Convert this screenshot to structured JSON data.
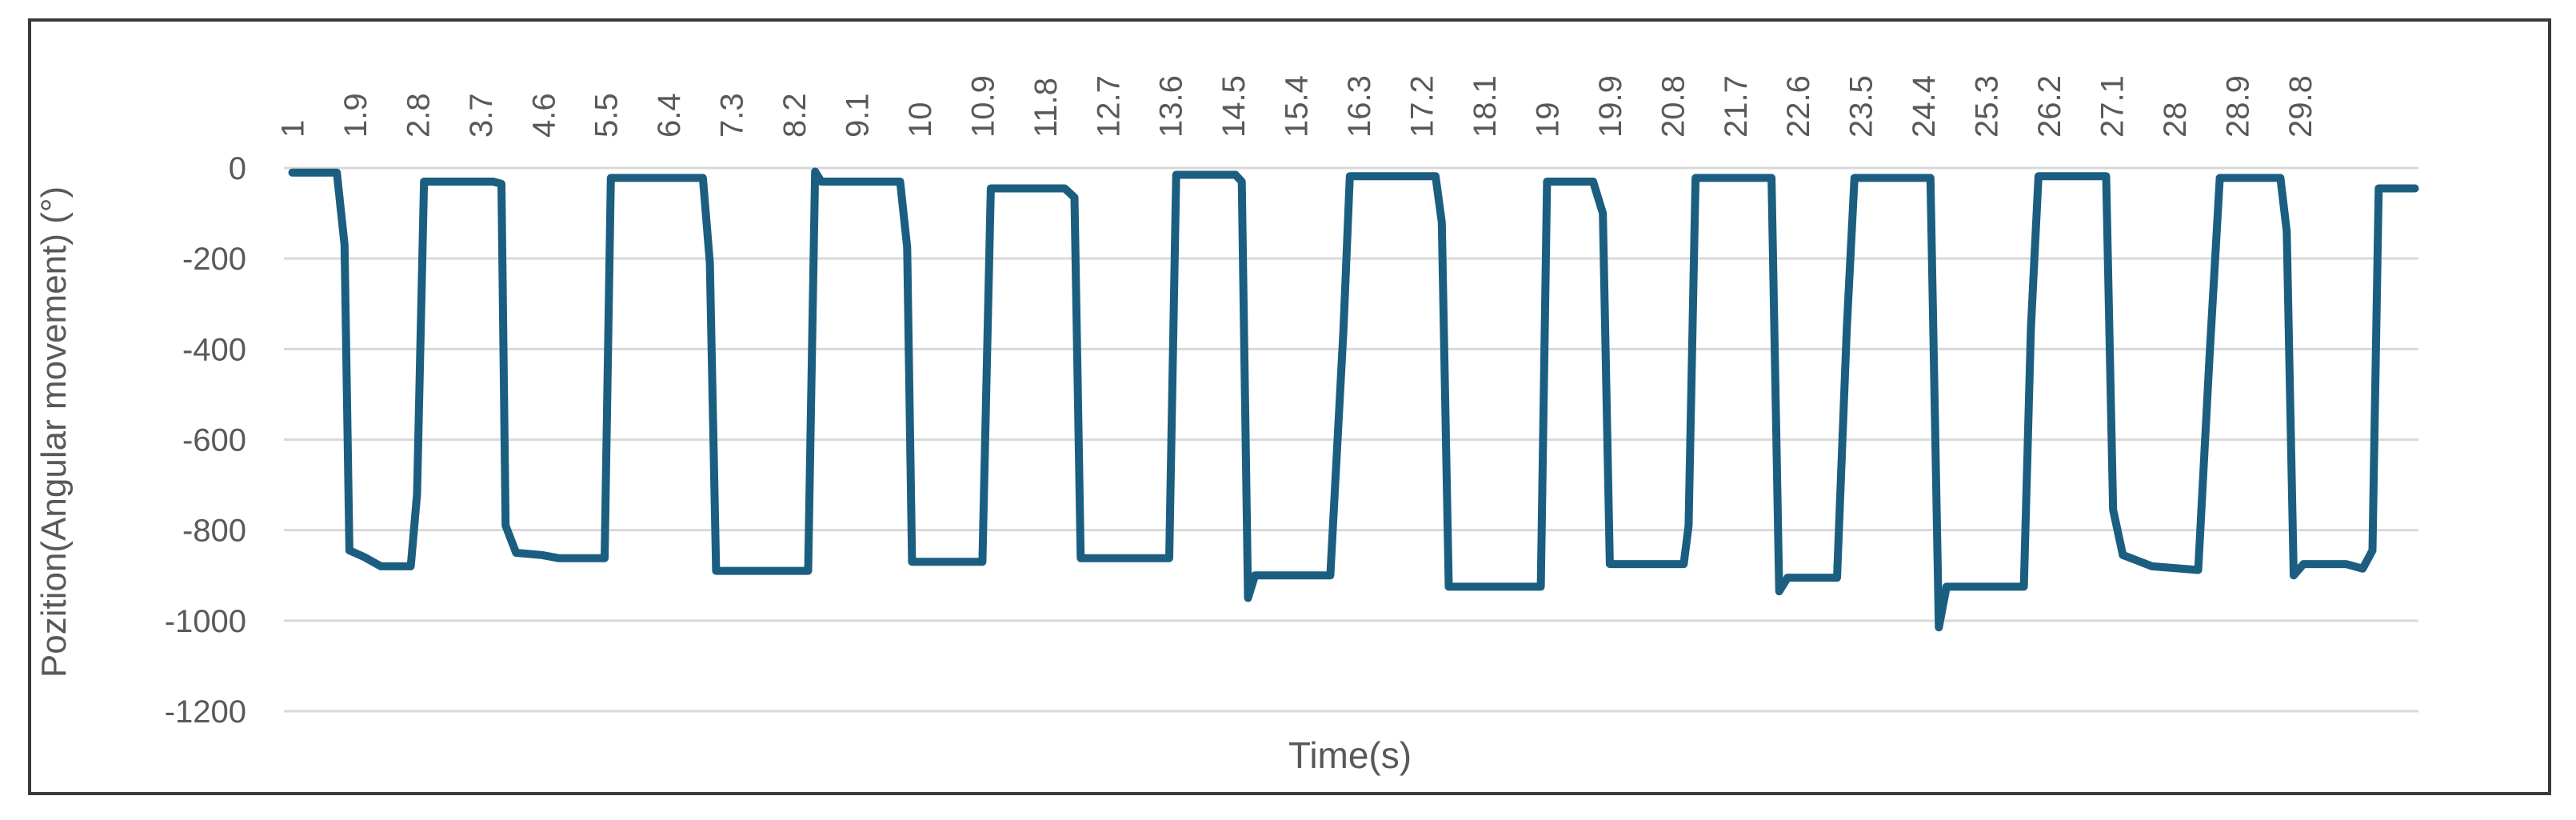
{
  "chart_data": {
    "type": "line",
    "y_label": "Pozition(Angular movement) (°)",
    "x_label": "Time(s)",
    "color": "#1b5e80",
    "grid": true,
    "xlim": [
      0.88,
      31.5
    ],
    "xticks": [
      1,
      1.9,
      2.8,
      3.7,
      4.6,
      5.5,
      6.4,
      7.3,
      8.2,
      9.1,
      10,
      10.9,
      11.8,
      12.7,
      13.6,
      14.5,
      15.4,
      16.3,
      17.2,
      18.1,
      19,
      19.9,
      20.8,
      21.7,
      22.6,
      23.5,
      24.4,
      25.3,
      26.2,
      27.1,
      28,
      28.9,
      29.8
    ],
    "ylim": [
      -1200,
      0
    ],
    "yticks": [
      0,
      -200,
      -400,
      -600,
      -800,
      -1000,
      -1200
    ],
    "x": [
      1,
      1.64,
      1.75,
      1.82,
      2.04,
      2.27,
      2.7,
      2.79,
      2.89,
      3.88,
      4.0,
      4.06,
      4.21,
      4.58,
      4.82,
      5.48,
      5.57,
      6.89,
      6.99,
      7.08,
      8.4,
      8.5,
      8.59,
      9.72,
      9.82,
      9.89,
      10.9,
      11.02,
      12.08,
      12.22,
      12.31,
      13.58,
      13.68,
      14.53,
      14.62,
      14.71,
      14.81,
      15.89,
      16.08,
      16.17,
      17.4,
      17.49,
      17.59,
      18.91,
      19.0,
      19.66,
      19.8,
      19.9,
      20.96,
      21.03,
      21.13,
      22.22,
      22.33,
      22.45,
      23.16,
      23.3,
      23.41,
      24.5,
      24.62,
      24.73,
      25.84,
      25.94,
      26.05,
      27.02,
      27.12,
      27.26,
      27.68,
      28.34,
      28.5,
      28.65,
      29.52,
      29.61,
      29.71,
      29.85,
      30.46,
      30.7,
      30.84,
      30.93,
      31.45
    ],
    "values": [
      -10,
      -10,
      -170,
      -845,
      -860,
      -880,
      -880,
      -720,
      -30,
      -30,
      -35,
      -790,
      -850,
      -855,
      -862,
      -862,
      -22,
      -22,
      -210,
      -890,
      -890,
      -8,
      -30,
      -30,
      -175,
      -870,
      -870,
      -45,
      -45,
      -65,
      -862,
      -862,
      -15,
      -15,
      -30,
      -950,
      -900,
      -900,
      -355,
      -18,
      -18,
      -120,
      -925,
      -925,
      -30,
      -30,
      -100,
      -875,
      -875,
      -790,
      -22,
      -22,
      -935,
      -905,
      -905,
      -355,
      -22,
      -22,
      -1015,
      -925,
      -925,
      -355,
      -18,
      -18,
      -755,
      -855,
      -880,
      -888,
      -425,
      -22,
      -22,
      -140,
      -900,
      -875,
      -875,
      -885,
      -845,
      -45,
      -45
    ]
  }
}
